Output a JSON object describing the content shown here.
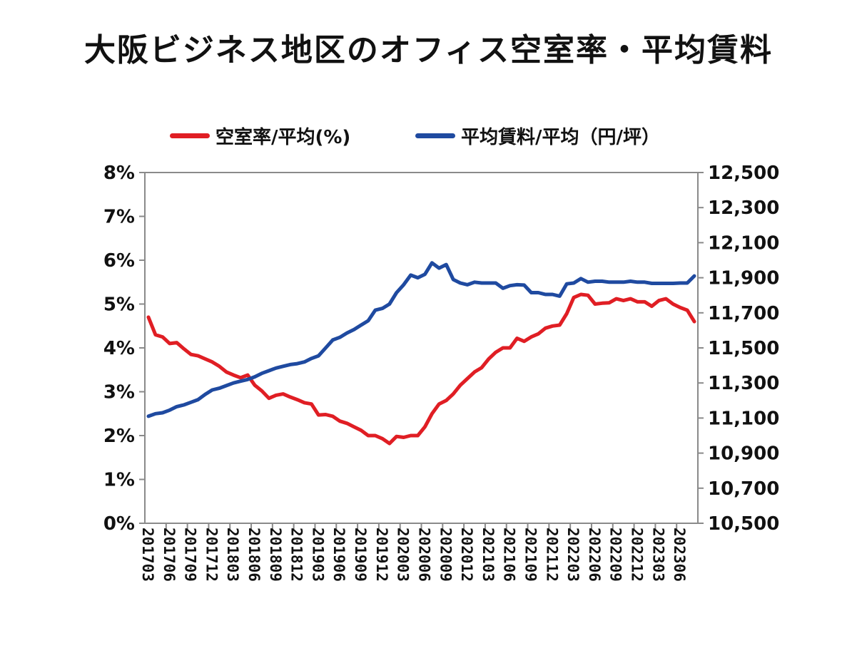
{
  "chart_data": {
    "type": "line",
    "title": "大阪ビジネス地区のオフィス空室率・平均賃料",
    "legend_position": "top",
    "x_labels": [
      "201703",
      "201706",
      "201709",
      "201712",
      "201803",
      "201806",
      "201809",
      "201812",
      "201903",
      "201906",
      "201909",
      "201912",
      "202003",
      "202006",
      "202009",
      "202012",
      "202103",
      "202106",
      "202109",
      "202112",
      "202203",
      "202206",
      "202209",
      "202212",
      "202303",
      "202306"
    ],
    "y_left": {
      "ticks": [
        "0%",
        "1%",
        "2%",
        "3%",
        "4%",
        "5%",
        "6%",
        "7%",
        "8%"
      ],
      "range": [
        0,
        8
      ]
    },
    "y_right": {
      "ticks": [
        "10,500",
        "10,700",
        "10,900",
        "11,100",
        "11,300",
        "11,500",
        "11,700",
        "11,900",
        "12,100",
        "12,300",
        "12,500"
      ],
      "range": [
        10500,
        12500
      ]
    },
    "series": [
      {
        "name": "空室率/平均(%)",
        "axis": "left",
        "color": "#e01e24",
        "values": [
          4.7,
          4.3,
          4.25,
          4.1,
          4.12,
          3.98,
          3.85,
          3.82,
          3.75,
          3.68,
          3.58,
          3.45,
          3.38,
          3.32,
          3.38,
          3.15,
          3.02,
          2.85,
          2.92,
          2.95,
          2.88,
          2.82,
          2.75,
          2.72,
          2.47,
          2.48,
          2.44,
          2.33,
          2.28,
          2.2,
          2.12,
          2.0,
          2.0,
          1.93,
          1.82,
          1.98,
          1.96,
          2.0,
          2.0,
          2.2,
          2.5,
          2.72,
          2.8,
          2.95,
          3.15,
          3.3,
          3.45,
          3.55,
          3.75,
          3.9,
          4.0,
          4.0,
          4.22,
          4.15,
          4.25,
          4.32,
          4.45,
          4.5,
          4.52,
          4.78,
          5.15,
          5.22,
          5.2,
          5.0,
          5.02,
          5.03,
          5.12,
          5.08,
          5.12,
          5.05,
          5.05,
          4.95,
          5.08,
          5.12,
          5.0,
          4.92,
          4.86,
          4.6
        ]
      },
      {
        "name": "平均賃料/平均（円/坪）",
        "axis": "right",
        "color": "#1f4aa0",
        "values": [
          11110,
          11125,
          11130,
          11145,
          11165,
          11175,
          11190,
          11205,
          11235,
          11260,
          11270,
          11285,
          11300,
          11310,
          11320,
          11335,
          11355,
          11370,
          11385,
          11395,
          11405,
          11410,
          11420,
          11440,
          11455,
          11500,
          11545,
          11560,
          11585,
          11605,
          11630,
          11655,
          11715,
          11725,
          11750,
          11815,
          11860,
          11915,
          11900,
          11920,
          11985,
          11955,
          11975,
          11890,
          11870,
          11860,
          11875,
          11870,
          11870,
          11870,
          11840,
          11855,
          11860,
          11858,
          11815,
          11815,
          11805,
          11805,
          11795,
          11865,
          11870,
          11895,
          11875,
          11880,
          11880,
          11875,
          11875,
          11875,
          11880,
          11875,
          11875,
          11868,
          11868,
          11868,
          11868,
          11870,
          11870,
          11910
        ]
      }
    ]
  }
}
